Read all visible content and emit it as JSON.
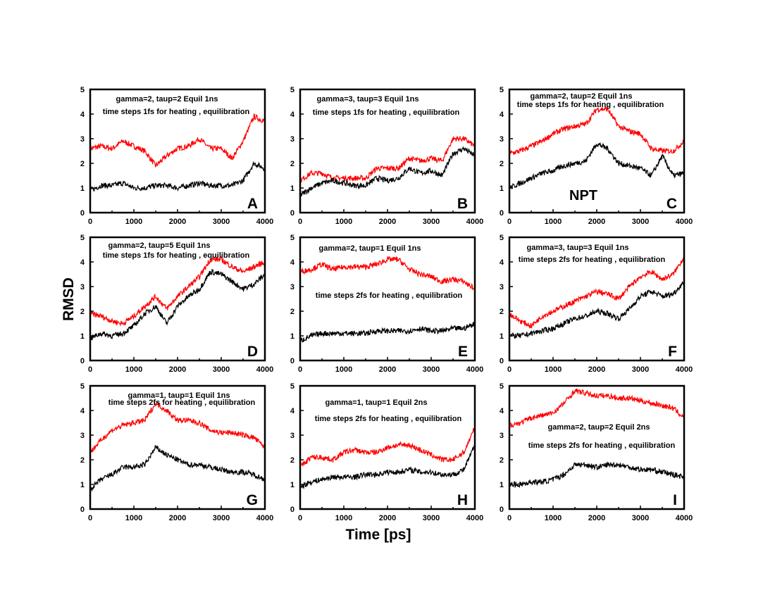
{
  "chart_data": {
    "type": "line",
    "title": "",
    "xlabel": "Time [ps]",
    "ylabel": "RMSD",
    "xlim": [
      0,
      4000
    ],
    "ylim": [
      0,
      5
    ],
    "xticks": [
      "0",
      "1000",
      "2000",
      "3000",
      "4000"
    ],
    "yticks": [
      "0",
      "1",
      "2",
      "3",
      "4",
      "5"
    ],
    "x": [
      0,
      250,
      500,
      750,
      1000,
      1250,
      1500,
      1750,
      2000,
      2250,
      2500,
      2750,
      3000,
      3250,
      3500,
      3750,
      4000
    ],
    "series_colors": {
      "red": "#ff0000",
      "black": "#000000"
    },
    "panels": [
      {
        "letter": "A",
        "notes": [
          "gamma=2, taup=2 Equil 1ns",
          "time steps  1fs for heating , equilibration"
        ],
        "red": [
          2.6,
          2.7,
          2.6,
          2.9,
          2.7,
          2.5,
          1.9,
          2.3,
          2.6,
          2.7,
          3.0,
          2.6,
          2.6,
          2.2,
          2.9,
          3.9,
          3.7
        ],
        "black": [
          0.9,
          1.1,
          1.1,
          1.2,
          1.0,
          1.0,
          1.1,
          1.1,
          1.0,
          1.1,
          1.2,
          1.1,
          1.1,
          1.1,
          1.3,
          2.0,
          1.8
        ]
      },
      {
        "letter": "B",
        "notes": [
          "gamma=3, taup=3 Equil 1ns",
          "time steps  1fs for heating , equilibration"
        ],
        "red": [
          1.3,
          1.6,
          1.6,
          1.4,
          1.4,
          1.4,
          1.4,
          1.8,
          1.8,
          1.8,
          2.2,
          2.1,
          2.2,
          2.1,
          3.0,
          3.0,
          2.7
        ],
        "black": [
          0.7,
          1.0,
          1.2,
          1.3,
          1.2,
          1.1,
          1.1,
          1.4,
          1.3,
          1.4,
          1.8,
          1.6,
          1.7,
          1.5,
          2.4,
          2.6,
          2.3
        ]
      },
      {
        "letter": "C",
        "notes": [
          "gamma=2, taup=2 Equil 1ns",
          "time steps  1fs for heating , equilibration",
          "NPT"
        ],
        "red": [
          2.4,
          2.5,
          2.7,
          2.9,
          3.2,
          3.4,
          3.5,
          3.6,
          4.2,
          4.2,
          3.5,
          3.3,
          3.2,
          2.6,
          2.5,
          2.5,
          2.9
        ],
        "black": [
          1.0,
          1.2,
          1.4,
          1.6,
          1.7,
          1.9,
          2.0,
          2.1,
          2.8,
          2.6,
          2.0,
          1.9,
          1.8,
          1.5,
          2.3,
          1.5,
          1.6
        ]
      },
      {
        "letter": "D",
        "notes": [
          "gamma=2, taup=5 Equil 1ns",
          "time steps  1fs for heating , equilibration"
        ],
        "red": [
          1.9,
          1.8,
          1.6,
          1.5,
          1.8,
          2.2,
          2.6,
          2.1,
          2.6,
          3.0,
          3.4,
          4.1,
          4.1,
          3.8,
          3.6,
          3.8,
          4.0
        ],
        "black": [
          0.9,
          1.1,
          1.0,
          1.1,
          1.4,
          1.9,
          2.2,
          1.5,
          2.2,
          2.6,
          2.9,
          3.6,
          3.5,
          3.2,
          2.9,
          3.1,
          3.5
        ]
      },
      {
        "letter": "E",
        "notes": [
          "gamma=2, taup=1 Equil 1ns",
          "time steps  2fs for heating , equilibration"
        ],
        "red": [
          3.6,
          3.7,
          3.9,
          3.7,
          3.8,
          3.8,
          3.8,
          3.9,
          4.1,
          4.1,
          3.7,
          3.5,
          3.4,
          3.2,
          3.3,
          3.2,
          2.9
        ],
        "black": [
          0.8,
          1.0,
          1.1,
          1.1,
          1.1,
          1.1,
          1.1,
          1.2,
          1.2,
          1.2,
          1.2,
          1.3,
          1.2,
          1.2,
          1.3,
          1.3,
          1.5
        ]
      },
      {
        "letter": "F",
        "notes": [
          "gamma=3, taup=3 Equil 1ns",
          "time steps  2fs for heating , equilibration"
        ],
        "red": [
          1.9,
          1.6,
          1.4,
          1.8,
          2.0,
          2.2,
          2.4,
          2.6,
          2.8,
          2.7,
          2.5,
          3.0,
          3.4,
          3.6,
          3.3,
          3.5,
          4.2
        ],
        "black": [
          1.0,
          1.0,
          1.1,
          1.2,
          1.3,
          1.5,
          1.7,
          1.8,
          2.0,
          1.9,
          1.7,
          2.1,
          2.6,
          2.8,
          2.6,
          2.7,
          3.2
        ]
      },
      {
        "letter": "G",
        "notes": [
          "gamma=1, taup=1 Equil 1ns",
          "time steps  2fs for heating , equilibration"
        ],
        "red": [
          2.3,
          2.8,
          3.2,
          3.4,
          3.5,
          3.6,
          4.3,
          4.0,
          3.6,
          3.6,
          3.5,
          3.2,
          3.1,
          3.1,
          3.0,
          2.9,
          2.5
        ],
        "black": [
          0.8,
          1.2,
          1.4,
          1.7,
          1.7,
          1.8,
          2.5,
          2.2,
          2.0,
          1.8,
          1.8,
          1.7,
          1.6,
          1.5,
          1.5,
          1.4,
          1.2
        ]
      },
      {
        "letter": "H",
        "notes": [
          "gamma=1, taup=1 Equil 2ns",
          "time steps  2fs for heating , equilibration"
        ],
        "red": [
          1.7,
          2.1,
          2.1,
          2.0,
          2.3,
          2.4,
          2.3,
          2.3,
          2.5,
          2.6,
          2.6,
          2.4,
          2.2,
          2.0,
          2.0,
          2.3,
          3.3
        ],
        "black": [
          0.9,
          1.1,
          1.2,
          1.3,
          1.3,
          1.3,
          1.4,
          1.4,
          1.5,
          1.5,
          1.6,
          1.5,
          1.5,
          1.4,
          1.4,
          1.6,
          2.6
        ]
      },
      {
        "letter": "I",
        "notes": [
          "gamma=2, taup=2 Equil 2ns",
          "time steps  2fs for heating , equilibration"
        ],
        "red": [
          3.4,
          3.5,
          3.7,
          3.8,
          3.9,
          4.3,
          4.8,
          4.7,
          4.6,
          4.6,
          4.5,
          4.5,
          4.4,
          4.3,
          4.2,
          4.1,
          3.7
        ],
        "black": [
          1.0,
          1.0,
          1.1,
          1.1,
          1.2,
          1.4,
          1.8,
          1.8,
          1.7,
          1.8,
          1.8,
          1.7,
          1.6,
          1.6,
          1.5,
          1.4,
          1.3
        ]
      }
    ]
  }
}
